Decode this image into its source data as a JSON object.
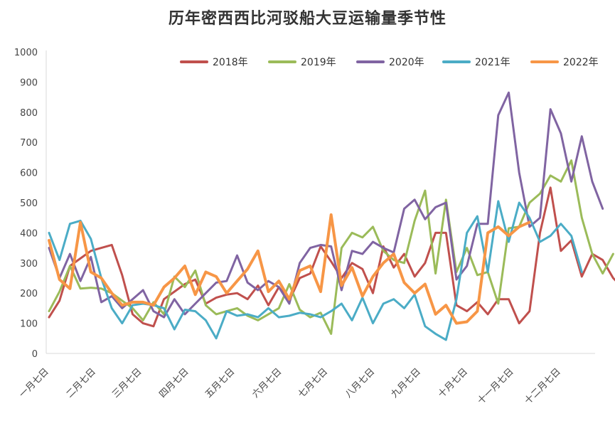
{
  "chart_data": {
    "type": "line",
    "title": "历年密西西比河驳船大豆运输量季节性",
    "xlabel": "",
    "ylabel": "",
    "ylim": [
      0,
      1000
    ],
    "y_ticks": [
      "0",
      "100",
      "200",
      "300",
      "400",
      "500",
      "600",
      "700",
      "800",
      "900",
      "1000"
    ],
    "x_ticks": [
      "一月七日",
      "二月七日",
      "三月七日",
      "四月七日",
      "五月七日",
      "六月七日",
      "七月七日",
      "八月七日",
      "九月七日",
      "十月七日",
      "十一月七日",
      "十二月七日"
    ],
    "x_tick_weeks": [
      0,
      4.5,
      8.9,
      13.4,
      17.8,
      22.3,
      26.7,
      31.2,
      35.6,
      40.1,
      44.5,
      49.0
    ],
    "weeks": 53,
    "grid": false,
    "legend_position": "top-right",
    "series": [
      {
        "name": "2018年",
        "color": "#C0504D",
        "values": [
          120,
          175,
          290,
          315,
          340,
          350,
          360,
          260,
          130,
          100,
          90,
          180,
          205,
          230,
          245,
          165,
          185,
          195,
          200,
          180,
          225,
          160,
          220,
          175,
          250,
          265,
          355,
          305,
          250,
          300,
          280,
          200,
          355,
          285,
          330,
          255,
          300,
          400,
          400,
          160,
          140,
          170,
          130,
          180,
          180,
          100,
          140,
          400,
          550,
          340,
          375,
          255,
          330,
          310,
          250,
          215
        ]
      },
      {
        "name": "2019年",
        "color": "#9BBB59",
        "values": [
          140,
          205,
          290,
          215,
          218,
          215,
          200,
          175,
          150,
          110,
          170,
          130,
          255,
          220,
          275,
          160,
          130,
          140,
          150,
          125,
          110,
          130,
          150,
          230,
          145,
          120,
          135,
          65,
          350,
          400,
          385,
          420,
          340,
          310,
          300,
          440,
          540,
          265,
          510,
          270,
          350,
          260,
          270,
          165,
          415,
          420,
          500,
          530,
          590,
          570,
          640,
          450,
          330,
          265,
          330
        ]
      },
      {
        "name": "2020年",
        "color": "#8064A2",
        "values": [
          350,
          250,
          330,
          240,
          320,
          170,
          190,
          150,
          180,
          210,
          140,
          120,
          180,
          130,
          165,
          200,
          235,
          240,
          325,
          235,
          210,
          240,
          220,
          165,
          300,
          350,
          360,
          355,
          210,
          340,
          330,
          370,
          350,
          335,
          480,
          510,
          445,
          485,
          500,
          245,
          290,
          430,
          430,
          790,
          865,
          600,
          420,
          450,
          810,
          730,
          570,
          720,
          570,
          480
        ]
      },
      {
        "name": "2021年",
        "color": "#4BACC6",
        "values": [
          400,
          310,
          430,
          440,
          380,
          250,
          150,
          100,
          160,
          165,
          160,
          150,
          80,
          145,
          140,
          110,
          50,
          140,
          125,
          130,
          120,
          150,
          120,
          125,
          135,
          130,
          120,
          140,
          165,
          110,
          185,
          100,
          165,
          180,
          150,
          195,
          90,
          65,
          45,
          180,
          400,
          455,
          270,
          505,
          370,
          500,
          450,
          370,
          390,
          430,
          390,
          270
        ]
      },
      {
        "name": "2022年",
        "color": "#F79646",
        "values": [
          375,
          245,
          215,
          435,
          270,
          250,
          200,
          160,
          170,
          170,
          160,
          220,
          250,
          290,
          195,
          270,
          255,
          200,
          240,
          280,
          340,
          205,
          240,
          180,
          275,
          290,
          205,
          460,
          225,
          285,
          190,
          255,
          300,
          330,
          235,
          200,
          230,
          130,
          160,
          100,
          105,
          140,
          400,
          420,
          390,
          420,
          435
        ]
      }
    ]
  }
}
